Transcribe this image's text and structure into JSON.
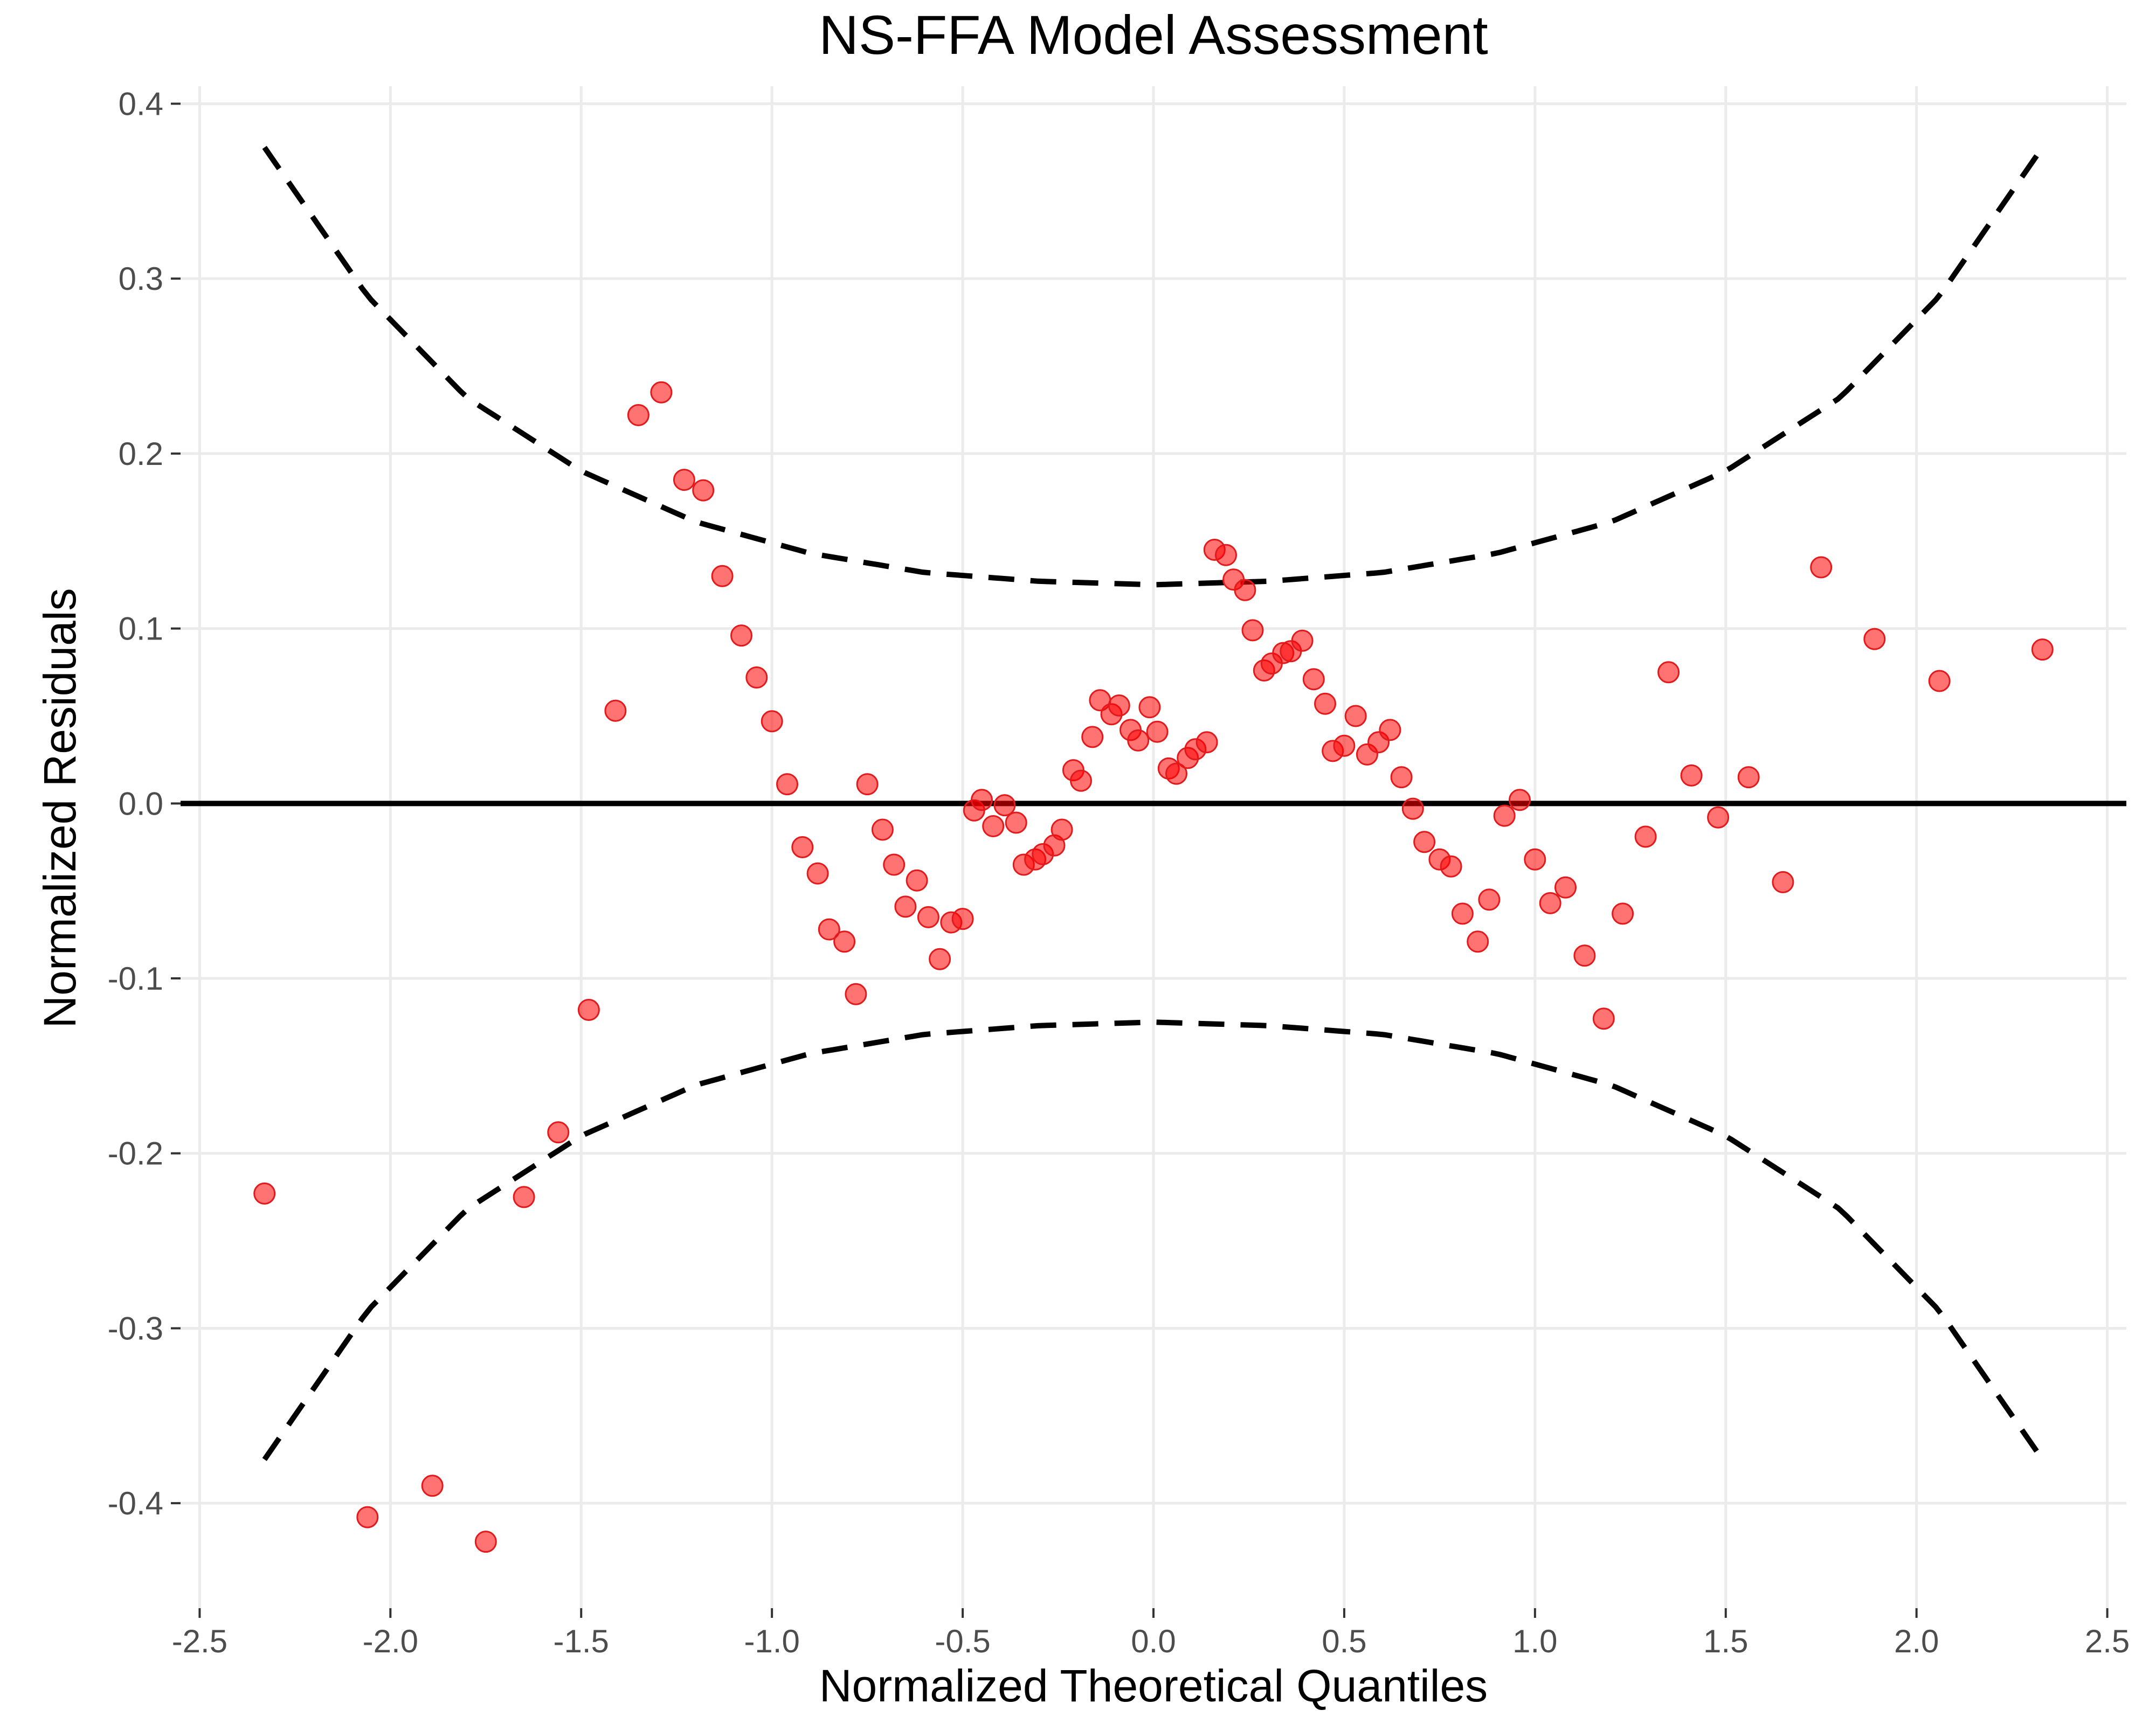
{
  "chart_data": {
    "type": "scatter",
    "title": "NS-FFA Model Assessment",
    "xlabel": "Normalized Theoretical Quantiles",
    "ylabel": "Normalized Residuals",
    "xlim": [
      -2.55,
      2.55
    ],
    "ylim": [
      -0.46,
      0.41
    ],
    "x_ticks": [
      -2.5,
      -2.0,
      -1.5,
      -1.0,
      -0.5,
      0.0,
      0.5,
      1.0,
      1.5,
      2.0,
      2.5
    ],
    "x_tick_labels": [
      "-2.5",
      "-2.0",
      "-1.5",
      "-1.0",
      "-0.5",
      "0.0",
      "0.5",
      "1.0",
      "1.5",
      "2.0",
      "2.5"
    ],
    "y_ticks": [
      -0.4,
      -0.3,
      -0.2,
      -0.1,
      0.0,
      0.1,
      0.2,
      0.3,
      0.4
    ],
    "y_tick_labels": [
      "-0.4",
      "-0.3",
      "-0.2",
      "-0.1",
      "0.0",
      "0.1",
      "0.2",
      "0.3",
      "0.4"
    ],
    "grid": true,
    "point_color": "#ff0000",
    "reference_line": {
      "y": 0.0,
      "color": "#000000",
      "style": "solid"
    },
    "confidence_bounds": {
      "style": "dashed",
      "color": "#000000",
      "x_range": [
        -2.33,
        2.33
      ],
      "upper": [
        [
          -2.33,
          0.375
        ],
        [
          -2.06,
          0.29
        ],
        [
          -1.8,
          0.232
        ],
        [
          -1.5,
          0.19
        ],
        [
          -1.2,
          0.161
        ],
        [
          -0.9,
          0.143
        ],
        [
          -0.6,
          0.132
        ],
        [
          -0.3,
          0.127
        ],
        [
          0.0,
          0.125
        ],
        [
          0.3,
          0.127
        ],
        [
          0.6,
          0.132
        ],
        [
          0.9,
          0.143
        ],
        [
          1.2,
          0.161
        ],
        [
          1.5,
          0.19
        ],
        [
          1.8,
          0.232
        ],
        [
          2.06,
          0.29
        ],
        [
          2.33,
          0.375
        ]
      ],
      "lower": [
        [
          -2.33,
          -0.375
        ],
        [
          -2.06,
          -0.29
        ],
        [
          -1.8,
          -0.232
        ],
        [
          -1.5,
          -0.19
        ],
        [
          -1.2,
          -0.161
        ],
        [
          -0.9,
          -0.143
        ],
        [
          -0.6,
          -0.132
        ],
        [
          -0.3,
          -0.127
        ],
        [
          0.0,
          -0.125
        ],
        [
          0.3,
          -0.127
        ],
        [
          0.6,
          -0.132
        ],
        [
          0.9,
          -0.143
        ],
        [
          1.2,
          -0.161
        ],
        [
          1.5,
          -0.19
        ],
        [
          1.8,
          -0.232
        ],
        [
          2.06,
          -0.29
        ],
        [
          2.33,
          -0.375
        ]
      ]
    },
    "points": [
      [
        -2.33,
        -0.223
      ],
      [
        -2.06,
        -0.408
      ],
      [
        -1.89,
        -0.39
      ],
      [
        -1.75,
        -0.422
      ],
      [
        -1.65,
        -0.225
      ],
      [
        -1.56,
        -0.188
      ],
      [
        -1.48,
        -0.118
      ],
      [
        -1.41,
        0.053
      ],
      [
        -1.35,
        0.222
      ],
      [
        -1.29,
        0.235
      ],
      [
        -1.23,
        0.185
      ],
      [
        -1.18,
        0.179
      ],
      [
        -1.13,
        0.13
      ],
      [
        -1.08,
        0.096
      ],
      [
        -1.04,
        0.072
      ],
      [
        -1.0,
        0.047
      ],
      [
        -0.96,
        0.011
      ],
      [
        -0.92,
        -0.025
      ],
      [
        -0.88,
        -0.04
      ],
      [
        -0.85,
        -0.072
      ],
      [
        -0.81,
        -0.079
      ],
      [
        -0.78,
        -0.109
      ],
      [
        -0.75,
        0.011
      ],
      [
        -0.71,
        -0.015
      ],
      [
        -0.68,
        -0.035
      ],
      [
        -0.65,
        -0.059
      ],
      [
        -0.62,
        -0.044
      ],
      [
        -0.59,
        -0.065
      ],
      [
        -0.56,
        -0.089
      ],
      [
        -0.53,
        -0.068
      ],
      [
        -0.5,
        -0.066
      ],
      [
        -0.47,
        -0.004
      ],
      [
        -0.45,
        0.002
      ],
      [
        -0.42,
        -0.013
      ],
      [
        -0.39,
        -0.001
      ],
      [
        -0.36,
        -0.011
      ],
      [
        -0.34,
        -0.035
      ],
      [
        -0.31,
        -0.032
      ],
      [
        -0.29,
        -0.029
      ],
      [
        -0.26,
        -0.024
      ],
      [
        -0.24,
        -0.015
      ],
      [
        -0.21,
        0.019
      ],
      [
        -0.19,
        0.013
      ],
      [
        -0.16,
        0.038
      ],
      [
        -0.14,
        0.059
      ],
      [
        -0.11,
        0.051
      ],
      [
        -0.09,
        0.056
      ],
      [
        -0.06,
        0.042
      ],
      [
        -0.04,
        0.036
      ],
      [
        -0.01,
        0.055
      ],
      [
        0.01,
        0.041
      ],
      [
        0.04,
        0.02
      ],
      [
        0.06,
        0.017
      ],
      [
        0.09,
        0.026
      ],
      [
        0.11,
        0.031
      ],
      [
        0.14,
        0.035
      ],
      [
        0.16,
        0.145
      ],
      [
        0.19,
        0.142
      ],
      [
        0.21,
        0.128
      ],
      [
        0.24,
        0.122
      ],
      [
        0.26,
        0.099
      ],
      [
        0.29,
        0.076
      ],
      [
        0.31,
        0.08
      ],
      [
        0.34,
        0.086
      ],
      [
        0.36,
        0.087
      ],
      [
        0.39,
        0.093
      ],
      [
        0.42,
        0.071
      ],
      [
        0.45,
        0.057
      ],
      [
        0.47,
        0.03
      ],
      [
        0.5,
        0.033
      ],
      [
        0.53,
        0.05
      ],
      [
        0.56,
        0.028
      ],
      [
        0.59,
        0.035
      ],
      [
        0.62,
        0.042
      ],
      [
        0.65,
        0.015
      ],
      [
        0.68,
        -0.003
      ],
      [
        0.71,
        -0.022
      ],
      [
        0.75,
        -0.032
      ],
      [
        0.78,
        -0.036
      ],
      [
        0.81,
        -0.063
      ],
      [
        0.85,
        -0.079
      ],
      [
        0.88,
        -0.055
      ],
      [
        0.92,
        -0.007
      ],
      [
        0.96,
        0.002
      ],
      [
        1.0,
        -0.032
      ],
      [
        1.04,
        -0.057
      ],
      [
        1.08,
        -0.048
      ],
      [
        1.13,
        -0.087
      ],
      [
        1.18,
        -0.123
      ],
      [
        1.23,
        -0.063
      ],
      [
        1.29,
        -0.019
      ],
      [
        1.35,
        0.075
      ],
      [
        1.41,
        0.016
      ],
      [
        1.48,
        -0.008
      ],
      [
        1.56,
        0.015
      ],
      [
        1.65,
        -0.045
      ],
      [
        1.75,
        0.135
      ],
      [
        1.89,
        0.094
      ],
      [
        2.06,
        0.07
      ],
      [
        2.33,
        0.088
      ]
    ]
  }
}
